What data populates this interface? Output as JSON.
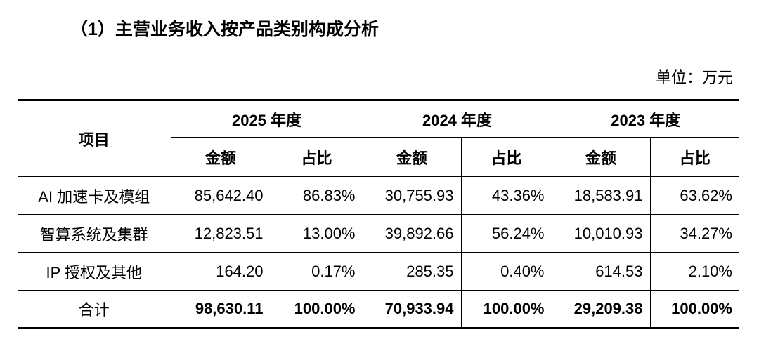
{
  "title": "（1）主营业务收入按产品类别构成分析",
  "unit": "单位：万元",
  "table": {
    "item_header": "项目",
    "years": [
      "2025 年度",
      "2024 年度",
      "2023 年度"
    ],
    "sub_headers": [
      "金额",
      "占比",
      "金额",
      "占比",
      "金额",
      "占比"
    ],
    "rows": [
      [
        "AI 加速卡及模组",
        "85,642.40",
        "86.83%",
        "30,755.93",
        "43.36%",
        "18,583.91",
        "63.62%"
      ],
      [
        "智算系统及集群",
        "12,823.51",
        "13.00%",
        "39,892.66",
        "56.24%",
        "10,010.93",
        "34.27%"
      ],
      [
        "IP 授权及其他",
        "164.20",
        "0.17%",
        "285.35",
        "0.40%",
        "614.53",
        "2.10%"
      ]
    ],
    "total": [
      "合计",
      "98,630.11",
      "100.00%",
      "70,933.94",
      "100.00%",
      "29,209.38",
      "100.00%"
    ]
  }
}
